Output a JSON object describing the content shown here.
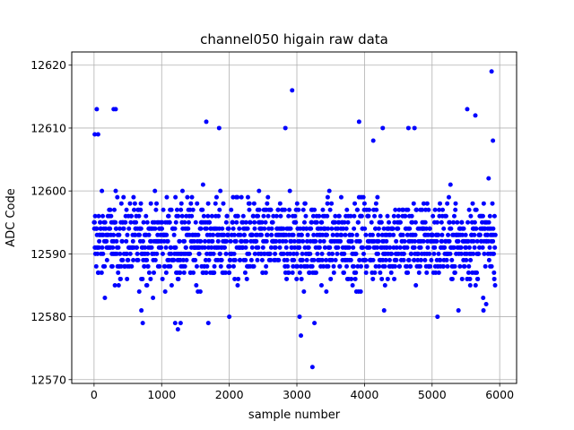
{
  "chart_data": {
    "type": "scatter",
    "title": "channel050 higain raw data",
    "xlabel": "sample number",
    "ylabel": "ADC Code",
    "xlim": [
      -330,
      6250
    ],
    "ylim": [
      12569.4,
      12622.1
    ],
    "xticks": [
      0,
      1000,
      2000,
      3000,
      4000,
      5000,
      6000
    ],
    "yticks": [
      12570,
      12580,
      12590,
      12600,
      12610,
      12620
    ],
    "grid": true,
    "marker_color": "#0000ff",
    "sample_count": 5940,
    "bulk_range": [
      12582,
      12602
    ],
    "outliers": [
      {
        "x": 10,
        "y": 12609
      },
      {
        "x": 40,
        "y": 12613
      },
      {
        "x": 60,
        "y": 12609
      },
      {
        "x": 290,
        "y": 12613
      },
      {
        "x": 320,
        "y": 12613
      },
      {
        "x": 700,
        "y": 12581
      },
      {
        "x": 720,
        "y": 12579
      },
      {
        "x": 1200,
        "y": 12579
      },
      {
        "x": 1240,
        "y": 12578
      },
      {
        "x": 1280,
        "y": 12579
      },
      {
        "x": 1690,
        "y": 12579
      },
      {
        "x": 1660,
        "y": 12611
      },
      {
        "x": 1850,
        "y": 12610
      },
      {
        "x": 2000,
        "y": 12580
      },
      {
        "x": 2830,
        "y": 12610
      },
      {
        "x": 2930,
        "y": 12616
      },
      {
        "x": 3040,
        "y": 12580
      },
      {
        "x": 3060,
        "y": 12577
      },
      {
        "x": 3230,
        "y": 12572
      },
      {
        "x": 3260,
        "y": 12579
      },
      {
        "x": 3920,
        "y": 12611
      },
      {
        "x": 4130,
        "y": 12608
      },
      {
        "x": 4270,
        "y": 12610
      },
      {
        "x": 4290,
        "y": 12581
      },
      {
        "x": 4650,
        "y": 12610
      },
      {
        "x": 4740,
        "y": 12610
      },
      {
        "x": 5080,
        "y": 12580
      },
      {
        "x": 5390,
        "y": 12581
      },
      {
        "x": 5520,
        "y": 12613
      },
      {
        "x": 5640,
        "y": 12612
      },
      {
        "x": 5760,
        "y": 12581
      },
      {
        "x": 5800,
        "y": 12582
      },
      {
        "x": 5880,
        "y": 12619
      },
      {
        "x": 5900,
        "y": 12608
      }
    ]
  }
}
